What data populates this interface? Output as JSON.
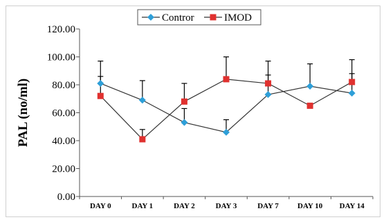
{
  "chart_data": {
    "type": "line",
    "title": "",
    "xlabel": "",
    "ylabel": "PAL (no/ml)",
    "categories": [
      "DAY 0",
      "DAY 1",
      "DAY 2",
      "DAY 3",
      "DAY 7",
      "DAY 10",
      "DAY 14"
    ],
    "ylim": [
      0,
      120
    ],
    "yticks": [
      "0.00",
      "20.00",
      "40.00",
      "60.00",
      "80.00",
      "100.00",
      "120.00"
    ],
    "grid": false,
    "legend_position": "top-center",
    "series": [
      {
        "name": "Contror",
        "color": "#2e9fd8",
        "marker": "diamond",
        "values": [
          81,
          69,
          53,
          46,
          73,
          79,
          74
        ],
        "error": [
          16,
          14,
          10,
          9,
          14,
          16,
          14
        ]
      },
      {
        "name": "IMOD",
        "color": "#e0312f",
        "marker": "square",
        "values": [
          72,
          41,
          68,
          84,
          81,
          65,
          82
        ],
        "error": [
          14,
          7,
          13,
          16,
          16,
          0,
          16
        ]
      }
    ]
  }
}
